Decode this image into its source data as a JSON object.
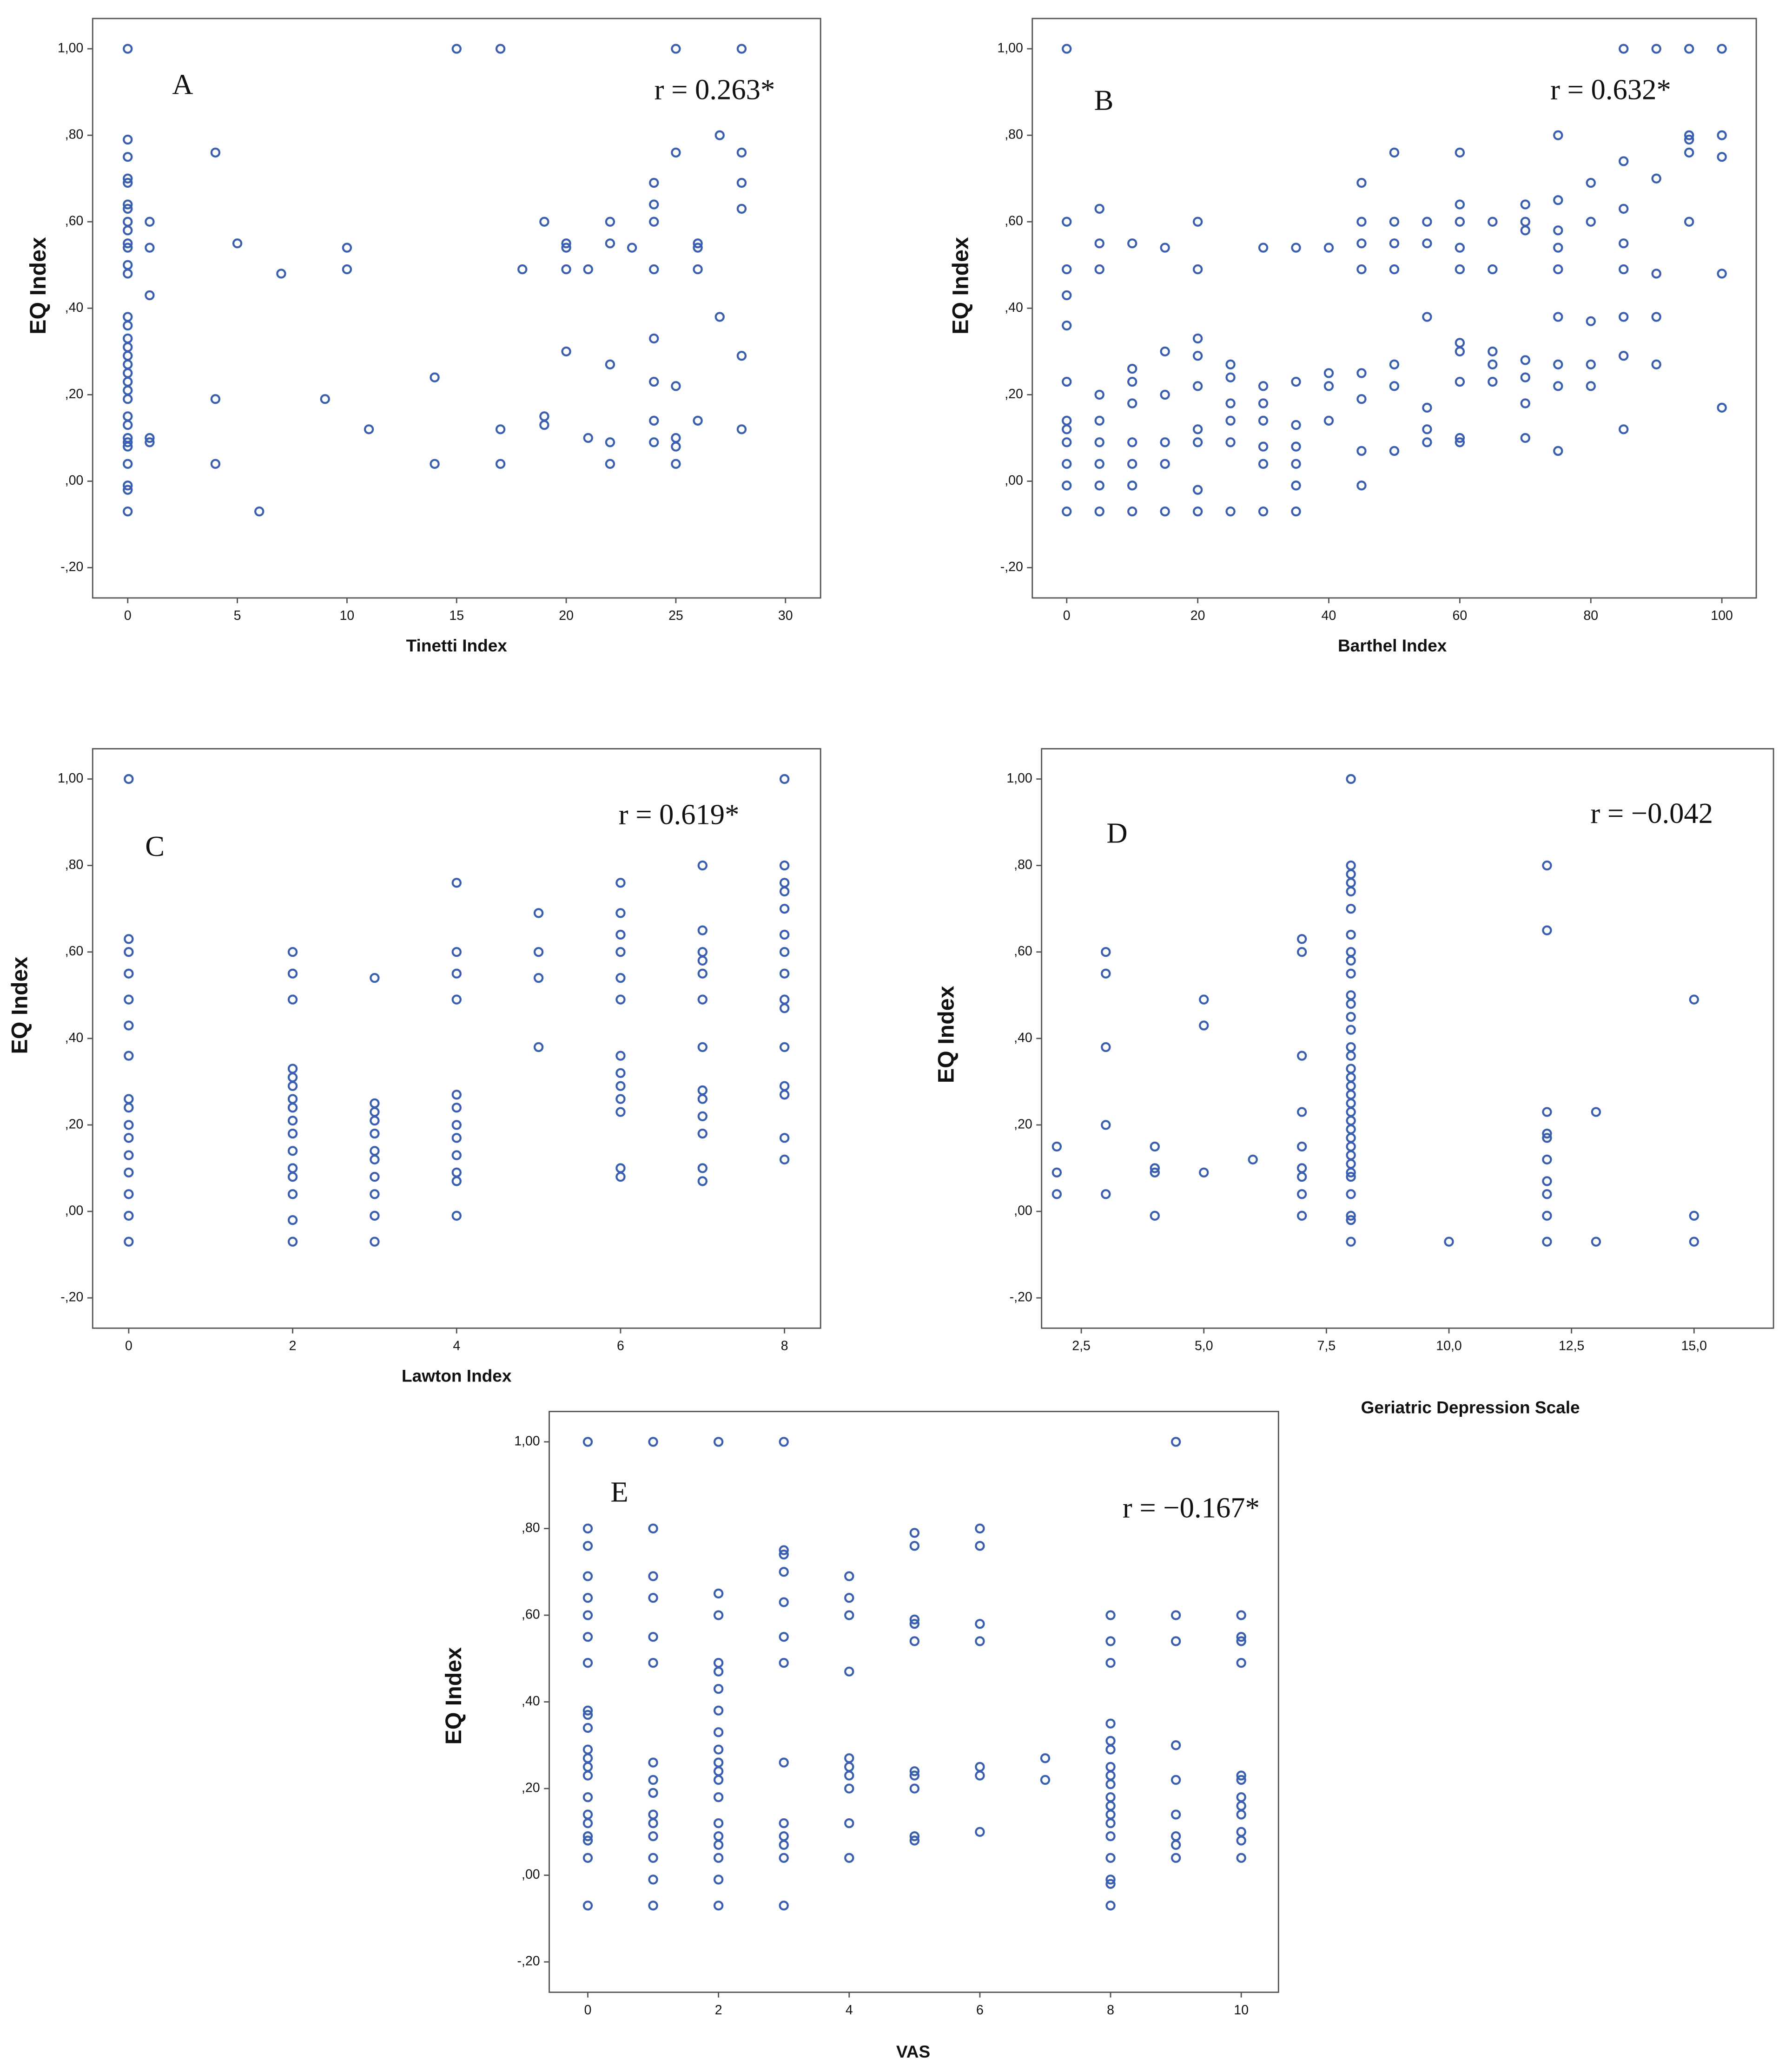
{
  "chart_data": [
    {
      "type": "scatter",
      "annotation": "A",
      "r_label": "r = 0.263*",
      "x_label": "Tinetti Index",
      "y_label": "EQ Index",
      "color": "#3a5fb0",
      "xlim": [
        -1.6,
        31.6
      ],
      "ylim": [
        -0.27,
        1.07
      ],
      "xticks": [
        0,
        5,
        10,
        15,
        20,
        25,
        30
      ],
      "yticks": [
        {
          "value": -0.2,
          "label": "-,20"
        },
        {
          "value": 0,
          "label": ",00"
        },
        {
          "value": 0.2,
          "label": ",20"
        },
        {
          "value": 0.4,
          "label": ",40"
        },
        {
          "value": 0.6,
          "label": ",60"
        },
        {
          "value": 0.8,
          "label": ",80"
        },
        {
          "value": 1,
          "label": "1,00"
        }
      ],
      "x": [
        0,
        0,
        0,
        0,
        0,
        0,
        0,
        0,
        0,
        0,
        0,
        0,
        0,
        0,
        0,
        0,
        0,
        0,
        0,
        0,
        0,
        0,
        0,
        0,
        0,
        0,
        0,
        0,
        0,
        0,
        0,
        0,
        1,
        1,
        1,
        1,
        1,
        4,
        4,
        4,
        5,
        6,
        7,
        9,
        10,
        10,
        11,
        14,
        14,
        15,
        17,
        17,
        17,
        18,
        19,
        19,
        19,
        20,
        20,
        20,
        20,
        21,
        21,
        22,
        22,
        22,
        22,
        22,
        23,
        24,
        24,
        24,
        24,
        24,
        24,
        24,
        24,
        25,
        25,
        25,
        25,
        25,
        25,
        26,
        26,
        26,
        26,
        27,
        27,
        28,
        28,
        28,
        28,
        28,
        28
      ],
      "y": [
        1.0,
        0.79,
        0.75,
        0.7,
        0.69,
        0.64,
        0.63,
        0.6,
        0.58,
        0.55,
        0.54,
        0.5,
        0.48,
        0.38,
        0.36,
        0.33,
        0.31,
        0.29,
        0.27,
        0.25,
        0.23,
        0.21,
        0.19,
        0.15,
        0.13,
        0.1,
        0.09,
        0.08,
        0.04,
        -0.01,
        -0.02,
        -0.07,
        0.6,
        0.54,
        0.43,
        0.1,
        0.09,
        0.76,
        0.19,
        0.04,
        0.55,
        -0.07,
        0.48,
        0.19,
        0.54,
        0.49,
        0.12,
        0.24,
        0.04,
        1.0,
        1.0,
        0.12,
        0.04,
        0.49,
        0.6,
        0.15,
        0.13,
        0.55,
        0.54,
        0.49,
        0.3,
        0.49,
        0.1,
        0.6,
        0.55,
        0.27,
        0.09,
        0.04,
        0.54,
        0.69,
        0.64,
        0.6,
        0.49,
        0.33,
        0.23,
        0.14,
        0.09,
        1.0,
        0.76,
        0.22,
        0.1,
        0.08,
        0.04,
        0.55,
        0.54,
        0.49,
        0.14,
        0.8,
        0.38,
        1.0,
        0.76,
        0.69,
        0.63,
        0.29,
        0.12
      ]
    },
    {
      "type": "scatter",
      "annotation": "B",
      "r_label": "r = 0.632*",
      "x_label": "Barthel Index",
      "y_label": "EQ Index",
      "color": "#3a5fb0",
      "xlim": [
        -5.25,
        105.25
      ],
      "ylim": [
        -0.27,
        1.07
      ],
      "xticks": [
        0,
        20,
        40,
        60,
        80,
        100
      ],
      "yticks": [
        {
          "value": -0.2,
          "label": "-,20"
        },
        {
          "value": 0,
          "label": ",00"
        },
        {
          "value": 0.2,
          "label": ",20"
        },
        {
          "value": 0.4,
          "label": ",40"
        },
        {
          "value": 0.6,
          "label": ",60"
        },
        {
          "value": 0.8,
          "label": ",80"
        },
        {
          "value": 1,
          "label": "1,00"
        }
      ],
      "x": [
        0,
        0,
        0,
        0,
        0,
        0,
        0,
        0,
        0,
        0,
        0,
        0,
        5,
        5,
        5,
        5,
        5,
        5,
        5,
        5,
        5,
        10,
        10,
        10,
        10,
        10,
        10,
        10,
        10,
        15,
        15,
        15,
        15,
        15,
        15,
        20,
        20,
        20,
        20,
        20,
        20,
        20,
        20,
        20,
        25,
        25,
        25,
        25,
        25,
        25,
        30,
        30,
        30,
        30,
        30,
        30,
        30,
        35,
        35,
        35,
        35,
        35,
        35,
        35,
        40,
        40,
        40,
        40,
        45,
        45,
        45,
        45,
        45,
        45,
        45,
        45,
        50,
        50,
        50,
        50,
        50,
        50,
        50,
        55,
        55,
        55,
        55,
        55,
        55,
        60,
        60,
        60,
        60,
        60,
        60,
        60,
        60,
        60,
        60,
        65,
        65,
        65,
        65,
        65,
        70,
        70,
        70,
        70,
        70,
        70,
        70,
        75,
        75,
        75,
        75,
        75,
        75,
        75,
        75,
        75,
        80,
        80,
        80,
        80,
        80,
        85,
        85,
        85,
        85,
        85,
        85,
        85,
        85,
        90,
        90,
        90,
        90,
        90,
        95,
        95,
        95,
        95,
        95,
        100,
        100,
        100,
        100,
        100
      ],
      "y": [
        1.0,
        0.6,
        0.49,
        0.43,
        0.36,
        0.23,
        0.14,
        0.12,
        0.09,
        0.04,
        -0.01,
        -0.07,
        0.63,
        0.55,
        0.49,
        0.2,
        0.14,
        0.09,
        0.04,
        -0.01,
        -0.07,
        0.55,
        0.26,
        0.23,
        0.18,
        0.09,
        0.04,
        -0.01,
        -0.07,
        0.54,
        0.3,
        0.2,
        0.09,
        0.04,
        -0.07,
        0.6,
        0.49,
        0.33,
        0.29,
        0.22,
        0.12,
        0.09,
        -0.02,
        -0.07,
        0.27,
        0.24,
        0.18,
        0.14,
        0.09,
        -0.07,
        0.54,
        0.22,
        0.18,
        0.14,
        0.08,
        0.04,
        -0.07,
        0.54,
        0.23,
        0.13,
        0.08,
        0.04,
        -0.01,
        -0.07,
        0.54,
        0.25,
        0.22,
        0.14,
        0.69,
        0.6,
        0.55,
        0.49,
        0.25,
        0.19,
        0.07,
        -0.01,
        0.76,
        0.6,
        0.55,
        0.49,
        0.27,
        0.22,
        0.07,
        0.6,
        0.55,
        0.38,
        0.17,
        0.12,
        0.09,
        0.76,
        0.64,
        0.6,
        0.54,
        0.49,
        0.32,
        0.3,
        0.23,
        0.1,
        0.09,
        0.6,
        0.49,
        0.3,
        0.27,
        0.23,
        0.64,
        0.6,
        0.58,
        0.28,
        0.24,
        0.18,
        0.1,
        0.8,
        0.65,
        0.58,
        0.54,
        0.49,
        0.38,
        0.27,
        0.22,
        0.07,
        0.69,
        0.6,
        0.37,
        0.27,
        0.22,
        1.0,
        0.74,
        0.63,
        0.55,
        0.49,
        0.38,
        0.29,
        0.12,
        1.0,
        0.7,
        0.48,
        0.38,
        0.27,
        1.0,
        0.8,
        0.79,
        0.76,
        0.6,
        1.0,
        0.8,
        0.75,
        0.48,
        0.17
      ]
    },
    {
      "type": "scatter",
      "annotation": "C",
      "r_label": "r = 0.619*",
      "x_label": "Lawton Index",
      "y_label": "EQ Index",
      "color": "#3a5fb0",
      "xlim": [
        -0.44,
        8.44
      ],
      "ylim": [
        -0.27,
        1.07
      ],
      "xticks": [
        0,
        2,
        4,
        6,
        8
      ],
      "yticks": [
        {
          "value": -0.2,
          "label": "-,20"
        },
        {
          "value": 0,
          "label": ",00"
        },
        {
          "value": 0.2,
          "label": ",20"
        },
        {
          "value": 0.4,
          "label": ",40"
        },
        {
          "value": 0.6,
          "label": ",60"
        },
        {
          "value": 0.8,
          "label": ",80"
        },
        {
          "value": 1,
          "label": "1,00"
        }
      ],
      "x": [
        0,
        0,
        0,
        0,
        0,
        0,
        0,
        0,
        0,
        0,
        0,
        0,
        0,
        0,
        0,
        0,
        2,
        2,
        2,
        2,
        2,
        2,
        2,
        2,
        2,
        2,
        2,
        2,
        2,
        2,
        2,
        2,
        3,
        3,
        3,
        3,
        3,
        3,
        3,
        3,
        3,
        3,
        3,
        4,
        4,
        4,
        4,
        4,
        4,
        4,
        4,
        4,
        4,
        4,
        4,
        5,
        5,
        5,
        5,
        6,
        6,
        6,
        6,
        6,
        6,
        6,
        6,
        6,
        6,
        6,
        6,
        6,
        7,
        7,
        7,
        7,
        7,
        7,
        7,
        7,
        7,
        7,
        7,
        7,
        7,
        8,
        8,
        8,
        8,
        8,
        8,
        8,
        8,
        8,
        8,
        8,
        8,
        8,
        8,
        8
      ],
      "y": [
        1.0,
        0.63,
        0.6,
        0.55,
        0.49,
        0.43,
        0.36,
        0.26,
        0.24,
        0.2,
        0.17,
        0.13,
        0.09,
        0.04,
        -0.01,
        -0.07,
        0.6,
        0.55,
        0.49,
        0.33,
        0.31,
        0.29,
        0.26,
        0.24,
        0.21,
        0.18,
        0.14,
        0.1,
        0.08,
        0.04,
        -0.02,
        -0.07,
        0.54,
        0.25,
        0.23,
        0.21,
        0.18,
        0.14,
        0.12,
        0.08,
        0.04,
        -0.01,
        -0.07,
        0.76,
        0.6,
        0.55,
        0.49,
        0.27,
        0.24,
        0.2,
        0.17,
        0.13,
        0.09,
        0.07,
        -0.01,
        0.69,
        0.6,
        0.54,
        0.38,
        0.76,
        0.69,
        0.64,
        0.6,
        0.54,
        0.49,
        0.36,
        0.32,
        0.29,
        0.26,
        0.23,
        0.1,
        0.08,
        0.8,
        0.65,
        0.6,
        0.58,
        0.55,
        0.49,
        0.38,
        0.28,
        0.26,
        0.22,
        0.18,
        0.1,
        0.07,
        1.0,
        0.8,
        0.76,
        0.74,
        0.7,
        0.64,
        0.6,
        0.55,
        0.49,
        0.47,
        0.38,
        0.29,
        0.27,
        0.17,
        0.12
      ]
    },
    {
      "type": "scatter",
      "annotation": "D",
      "r_label": "r = −0.042",
      "x_label": "Geriatric Depression Scale",
      "y_label": "EQ Index",
      "color": "#3a5fb0",
      "xlim": [
        1.69,
        16.62
      ],
      "ylim": [
        -0.27,
        1.07
      ],
      "xticks": [
        {
          "value": 2.5,
          "label": "2,5"
        },
        {
          "value": 5,
          "label": "5,0"
        },
        {
          "value": 7.5,
          "label": "7,5"
        },
        {
          "value": 10,
          "label": "10,0"
        },
        {
          "value": 12.5,
          "label": "12,5"
        },
        {
          "value": 15,
          "label": "15,0"
        }
      ],
      "yticks": [
        {
          "value": -0.2,
          "label": "-,20"
        },
        {
          "value": 0,
          "label": ",00"
        },
        {
          "value": 0.2,
          "label": ",20"
        },
        {
          "value": 0.4,
          "label": ",40"
        },
        {
          "value": 0.6,
          "label": ",60"
        },
        {
          "value": 0.8,
          "label": ",80"
        },
        {
          "value": 1,
          "label": "1,00"
        }
      ],
      "x": [
        2,
        2,
        2,
        3,
        3,
        3,
        3,
        3,
        4,
        4,
        4,
        4,
        5,
        5,
        5,
        6,
        7,
        7,
        7,
        7,
        7,
        7,
        7,
        7,
        7,
        8,
        8,
        8,
        8,
        8,
        8,
        8,
        8,
        8,
        8,
        8,
        8,
        8,
        8,
        8,
        8,
        8,
        8,
        8,
        8,
        8,
        8,
        8,
        8,
        8,
        8,
        8,
        8,
        8,
        8,
        8,
        8,
        8,
        8,
        10,
        12,
        12,
        12,
        12,
        12,
        12,
        12,
        12,
        12,
        12,
        13,
        13,
        15,
        15,
        15
      ],
      "y": [
        0.15,
        0.09,
        0.04,
        0.6,
        0.55,
        0.38,
        0.2,
        0.04,
        0.15,
        0.1,
        0.09,
        -0.01,
        0.49,
        0.43,
        0.09,
        0.12,
        0.63,
        0.6,
        0.36,
        0.23,
        0.15,
        0.1,
        0.08,
        0.04,
        -0.01,
        1.0,
        0.8,
        0.78,
        0.76,
        0.74,
        0.7,
        0.64,
        0.6,
        0.58,
        0.55,
        0.5,
        0.48,
        0.45,
        0.42,
        0.38,
        0.36,
        0.33,
        0.31,
        0.29,
        0.27,
        0.25,
        0.23,
        0.21,
        0.19,
        0.17,
        0.15,
        0.13,
        0.11,
        0.09,
        0.08,
        0.04,
        -0.01,
        -0.02,
        -0.07,
        -0.07,
        0.8,
        0.65,
        0.23,
        0.18,
        0.17,
        0.12,
        0.07,
        0.04,
        -0.01,
        -0.07,
        0.23,
        -0.07,
        0.49,
        -0.01,
        -0.07
      ]
    },
    {
      "type": "scatter",
      "annotation": "E",
      "r_label": "r = −0.167*",
      "x_label": "VAS",
      "y_label": "EQ Index",
      "color": "#3a5fb0",
      "xlim": [
        -0.59,
        10.57
      ],
      "ylim": [
        -0.27,
        1.07
      ],
      "xticks": [
        0,
        2,
        4,
        6,
        8,
        10
      ],
      "yticks": [
        {
          "value": -0.2,
          "label": "-,20"
        },
        {
          "value": 0,
          "label": ",00"
        },
        {
          "value": 0.2,
          "label": ",20"
        },
        {
          "value": 0.4,
          "label": ",40"
        },
        {
          "value": 0.6,
          "label": ",60"
        },
        {
          "value": 0.8,
          "label": ",80"
        },
        {
          "value": 1,
          "label": "1,00"
        }
      ],
      "x": [
        0,
        0,
        0,
        0,
        0,
        0,
        0,
        0,
        0,
        0,
        0,
        0,
        0,
        0,
        0,
        0,
        0,
        0,
        0,
        0,
        0,
        0,
        1,
        1,
        1,
        1,
        1,
        1,
        1,
        1,
        1,
        1,
        1,
        1,
        1,
        1,
        1,
        2,
        2,
        2,
        2,
        2,
        2,
        2,
        2,
        2,
        2,
        2,
        2,
        2,
        2,
        2,
        2,
        2,
        2,
        2,
        3,
        3,
        3,
        3,
        3,
        3,
        3,
        3,
        3,
        3,
        3,
        3,
        3,
        4,
        4,
        4,
        4,
        4,
        4,
        4,
        4,
        4,
        4,
        5,
        5,
        5,
        5,
        5,
        5,
        5,
        5,
        5,
        5,
        6,
        6,
        6,
        6,
        6,
        6,
        6,
        7,
        7,
        8,
        8,
        8,
        8,
        8,
        8,
        8,
        8,
        8,
        8,
        8,
        8,
        8,
        8,
        8,
        8,
        8,
        8,
        9,
        9,
        9,
        9,
        9,
        9,
        9,
        9,
        9,
        10,
        10,
        10,
        10,
        10,
        10,
        10,
        10,
        10,
        10,
        10,
        10
      ],
      "y": [
        1.0,
        0.8,
        0.76,
        0.69,
        0.64,
        0.6,
        0.55,
        0.49,
        0.38,
        0.37,
        0.34,
        0.29,
        0.27,
        0.25,
        0.23,
        0.18,
        0.14,
        0.12,
        0.09,
        0.08,
        0.04,
        -0.07,
        1.0,
        0.8,
        0.69,
        0.64,
        0.55,
        0.49,
        0.26,
        0.22,
        0.19,
        0.14,
        0.12,
        0.09,
        0.04,
        -0.01,
        -0.07,
        1.0,
        0.65,
        0.6,
        0.49,
        0.47,
        0.43,
        0.38,
        0.33,
        0.29,
        0.26,
        0.24,
        0.22,
        0.18,
        0.12,
        0.09,
        0.07,
        0.04,
        -0.01,
        -0.07,
        1.0,
        0.75,
        0.74,
        0.7,
        0.63,
        0.55,
        0.49,
        0.26,
        0.12,
        0.09,
        0.07,
        0.04,
        -0.07,
        0.69,
        0.64,
        0.6,
        0.47,
        0.27,
        0.25,
        0.23,
        0.2,
        0.12,
        0.04,
        0.79,
        0.76,
        0.59,
        0.58,
        0.54,
        0.24,
        0.23,
        0.2,
        0.09,
        0.08,
        0.8,
        0.76,
        0.58,
        0.54,
        0.25,
        0.23,
        0.1,
        0.27,
        0.22,
        0.6,
        0.54,
        0.49,
        0.35,
        0.31,
        0.29,
        0.25,
        0.23,
        0.21,
        0.18,
        0.16,
        0.14,
        0.12,
        0.09,
        0.04,
        -0.01,
        -0.02,
        -0.07,
        1.0,
        0.6,
        0.54,
        0.3,
        0.22,
        0.14,
        0.09,
        0.07,
        0.04,
        0.6,
        0.55,
        0.54,
        0.49,
        0.23,
        0.22,
        0.18,
        0.16,
        0.14,
        0.1,
        0.08,
        0.04
      ]
    }
  ]
}
